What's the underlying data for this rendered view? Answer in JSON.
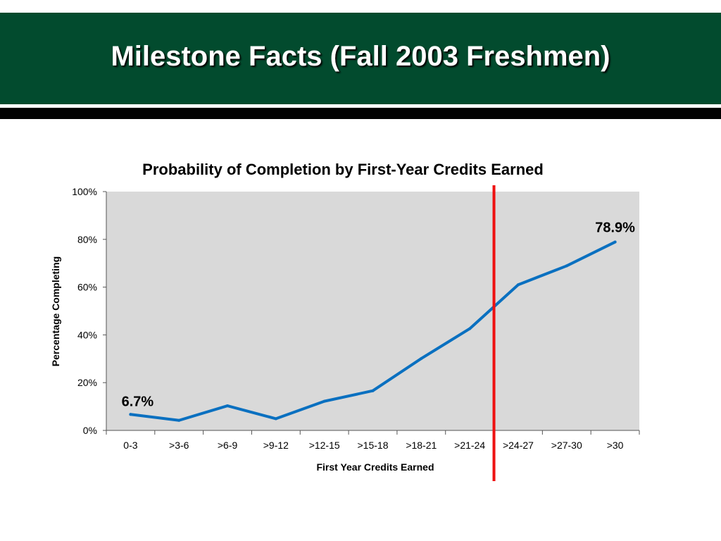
{
  "slide": {
    "title": "Milestone Facts (Fall 2003 Freshmen)"
  },
  "colors": {
    "banner": "#024b2e",
    "rule": "#000000",
    "plot_background": "#d9d9d9",
    "line": "#0a70c0",
    "marker_line": "#ee1111"
  },
  "chart_data": {
    "type": "line",
    "title": "Probability of Completion by First-Year Credits Earned",
    "xlabel": "First Year Credits Earned",
    "ylabel": "Percentage Completing",
    "categories": [
      "0-3",
      ">3-6",
      ">6-9",
      ">9-12",
      ">12-15",
      ">15-18",
      ">18-21",
      ">21-24",
      ">24-27",
      ">27-30",
      ">30"
    ],
    "series": [
      {
        "values": [
          6.7,
          4.2,
          10.3,
          4.9,
          12.2,
          16.6,
          30.1,
          42.6,
          61.0,
          68.9,
          78.9
        ]
      }
    ],
    "ylim": [
      0,
      100
    ],
    "yticks": [
      0,
      20,
      40,
      60,
      80,
      100
    ],
    "ytick_labels": [
      "0%",
      "20%",
      "40%",
      "60%",
      "80%",
      "100%"
    ],
    "data_labels": [
      {
        "index": 0,
        "text": "6.7%"
      },
      {
        "index": 10,
        "text": "78.9%"
      }
    ],
    "vertical_marker": {
      "between_categories": [
        ">21-24",
        ">24-27"
      ],
      "color": "#ee1111"
    },
    "grid": false,
    "legend": "none"
  }
}
